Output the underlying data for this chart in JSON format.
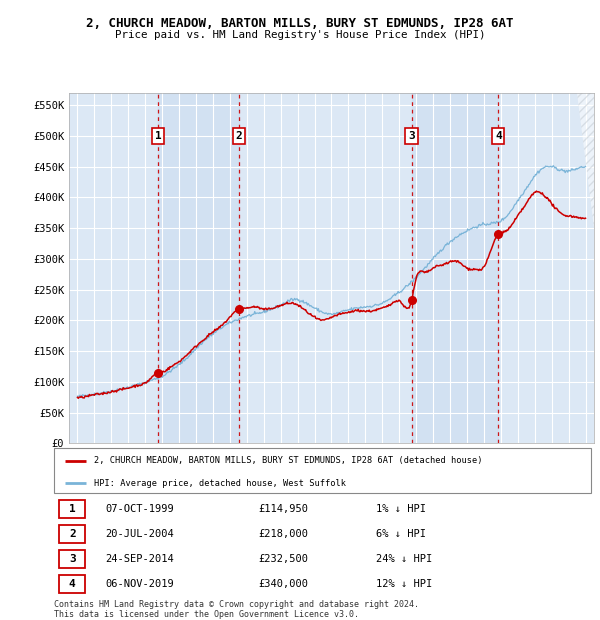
{
  "title": "2, CHURCH MEADOW, BARTON MILLS, BURY ST EDMUNDS, IP28 6AT",
  "subtitle": "Price paid vs. HM Land Registry's House Price Index (HPI)",
  "legend_line1": "2, CHURCH MEADOW, BARTON MILLS, BURY ST EDMUNDS, IP28 6AT (detached house)",
  "legend_line2": "HPI: Average price, detached house, West Suffolk",
  "footnote1": "Contains HM Land Registry data © Crown copyright and database right 2024.",
  "footnote2": "This data is licensed under the Open Government Licence v3.0.",
  "sales": [
    {
      "num": 1,
      "date": "07-OCT-1999",
      "price": 114950,
      "pct": "1%",
      "x": 1999.77
    },
    {
      "num": 2,
      "date": "20-JUL-2004",
      "price": 218000,
      "pct": "6%",
      "x": 2004.55
    },
    {
      "num": 3,
      "date": "24-SEP-2014",
      "price": 232500,
      "pct": "24%",
      "x": 2014.73
    },
    {
      "num": 4,
      "date": "06-NOV-2019",
      "price": 340000,
      "pct": "12%",
      "x": 2019.85
    }
  ],
  "xlim": [
    1994.5,
    2025.5
  ],
  "ylim": [
    0,
    570000
  ],
  "yticks": [
    0,
    50000,
    100000,
    150000,
    200000,
    250000,
    300000,
    350000,
    400000,
    450000,
    500000,
    550000
  ],
  "xticks": [
    1995,
    1996,
    1997,
    1998,
    1999,
    2000,
    2001,
    2002,
    2003,
    2004,
    2005,
    2006,
    2007,
    2008,
    2009,
    2010,
    2011,
    2012,
    2013,
    2014,
    2015,
    2016,
    2017,
    2018,
    2019,
    2020,
    2021,
    2022,
    2023,
    2024,
    2025
  ],
  "hpi_color": "#7ab4d8",
  "price_color": "#cc0000",
  "vline_color": "#cc0000",
  "bg_plot": "#dce8f5",
  "grid_color": "#ffffff",
  "hatch_color": "#c0c8d0",
  "sale_dot_color": "#cc0000",
  "hpi_anchors_x": [
    1995,
    1995.5,
    1996,
    1996.5,
    1997,
    1997.5,
    1998,
    1998.5,
    1999,
    1999.5,
    2000,
    2000.5,
    2001,
    2001.5,
    2002,
    2002.5,
    2003,
    2003.5,
    2004,
    2004.5,
    2005,
    2005.5,
    2006,
    2006.5,
    2007,
    2007.5,
    2008,
    2008.5,
    2009,
    2009.5,
    2010,
    2010.5,
    2011,
    2011.5,
    2012,
    2012.5,
    2013,
    2013.5,
    2014,
    2014.5,
    2015,
    2015.5,
    2016,
    2016.5,
    2017,
    2017.5,
    2018,
    2018.5,
    2019,
    2019.5,
    2020,
    2020.5,
    2021,
    2021.5,
    2022,
    2022.5,
    2023,
    2023.5,
    2024,
    2024.5,
    2025
  ],
  "hpi_anchors_y": [
    76000,
    78000,
    80000,
    82000,
    85000,
    88000,
    91000,
    95000,
    99000,
    104000,
    109000,
    118000,
    128000,
    140000,
    154000,
    167000,
    178000,
    188000,
    196000,
    202000,
    207000,
    210000,
    214000,
    219000,
    225000,
    232000,
    234000,
    228000,
    220000,
    213000,
    210000,
    213000,
    217000,
    220000,
    222000,
    224000,
    228000,
    236000,
    246000,
    257000,
    270000,
    285000,
    300000,
    315000,
    328000,
    338000,
    346000,
    352000,
    356000,
    358000,
    362000,
    375000,
    395000,
    415000,
    435000,
    448000,
    450000,
    445000,
    443000,
    447000,
    450000
  ],
  "price_anchors_x": [
    1995,
    1995.5,
    1996,
    1996.5,
    1997,
    1997.5,
    1998,
    1998.5,
    1999,
    1999.77,
    2000,
    2000.5,
    2001,
    2001.5,
    2002,
    2002.5,
    2003,
    2003.5,
    2004.55,
    2005,
    2005.5,
    2006,
    2006.5,
    2007,
    2007.5,
    2008,
    2008.5,
    2009,
    2009.5,
    2010,
    2010.5,
    2011,
    2011.5,
    2012,
    2012.5,
    2013,
    2013.5,
    2014,
    2014.73,
    2015,
    2015.5,
    2016,
    2016.5,
    2017,
    2017.5,
    2018,
    2018.5,
    2019,
    2019.85,
    2020,
    2020.5,
    2021,
    2021.5,
    2022,
    2022.5,
    2023,
    2023.5,
    2024,
    2024.5,
    2025
  ],
  "price_anchors_y": [
    74000,
    76000,
    79000,
    81000,
    84000,
    87000,
    90000,
    94000,
    98000,
    114950,
    116000,
    124000,
    133000,
    145000,
    158000,
    170000,
    181000,
    191000,
    218000,
    220000,
    222000,
    218000,
    220000,
    224000,
    228000,
    225000,
    215000,
    205000,
    200000,
    205000,
    210000,
    213000,
    216000,
    215000,
    216000,
    220000,
    226000,
    232000,
    232500,
    268000,
    278000,
    285000,
    290000,
    295000,
    295000,
    285000,
    283000,
    287000,
    340000,
    342000,
    350000,
    370000,
    390000,
    408000,
    405000,
    390000,
    375000,
    370000,
    368000,
    365000
  ]
}
